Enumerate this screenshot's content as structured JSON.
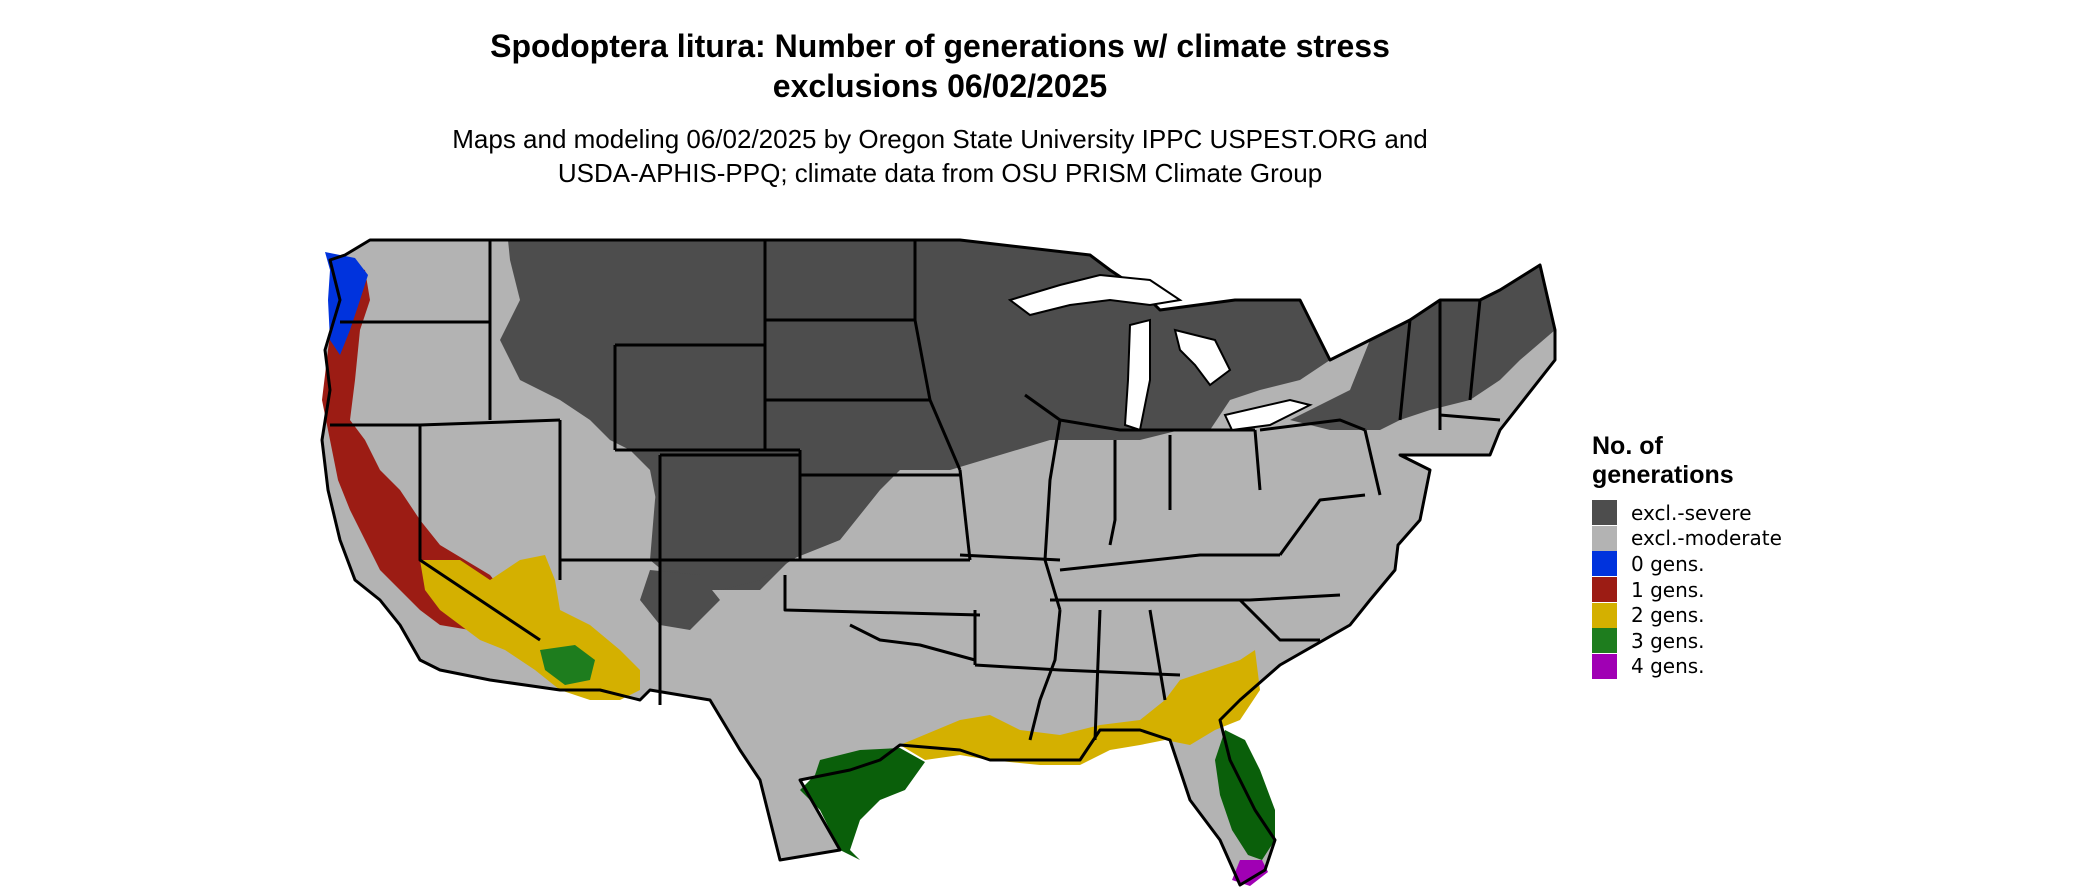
{
  "title": {
    "line1": "Spodoptera litura: Number of generations w/ climate stress",
    "line2": "exclusions 06/02/2025"
  },
  "subtitle": {
    "line1": "Maps and modeling 06/02/2025 by Oregon State University IPPC USPEST.ORG and",
    "line2": "USDA-APHIS-PPQ; climate data from OSU PRISM Climate Group"
  },
  "legend": {
    "title_line1": "No. of",
    "title_line2": "generations",
    "items": [
      {
        "label": "excl.-severe",
        "color": "#4d4d4d"
      },
      {
        "label": "excl.-moderate",
        "color": "#b3b3b3"
      },
      {
        "label": "0 gens.",
        "color": "#0033dd"
      },
      {
        "label": "1 gens.",
        "color": "#9c1c14"
      },
      {
        "label": "2 gens.",
        "color": "#d4b000"
      },
      {
        "label": "3 gens.",
        "color": "#1e7d1e"
      },
      {
        "label": "4 gens.",
        "color": "#a000b4"
      }
    ]
  },
  "colors": {
    "severe": "#4d4d4d",
    "moderate": "#b3b3b3",
    "gen0": "#0033dd",
    "gen1": "#9c1c14",
    "gen2": "#d4b000",
    "gen3": "#1e7d1e",
    "gen3_dark": "#0a5f0a",
    "gen4": "#a000b4",
    "border": "#000000"
  }
}
